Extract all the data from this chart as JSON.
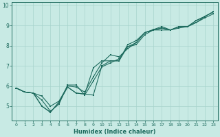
{
  "title": "",
  "xlabel": "Humidex (Indice chaleur)",
  "xlim": [
    -0.5,
    23.5
  ],
  "ylim": [
    4.3,
    10.15
  ],
  "yticks": [
    5,
    6,
    7,
    8,
    9,
    10
  ],
  "xticks": [
    0,
    1,
    2,
    3,
    4,
    5,
    6,
    7,
    8,
    9,
    10,
    11,
    12,
    13,
    14,
    15,
    16,
    17,
    18,
    19,
    20,
    21,
    22,
    23
  ],
  "bg_color": "#c8eae4",
  "grid_color": "#a8d4cc",
  "line_color": "#1e6b5e",
  "line1": [
    5.9,
    5.7,
    5.65,
    5.0,
    4.7,
    5.2,
    5.95,
    5.65,
    5.6,
    5.55,
    7.0,
    7.25,
    7.25,
    8.05,
    8.25,
    8.65,
    8.8,
    8.95,
    8.78,
    8.95,
    8.95,
    9.25,
    9.45,
    9.68
  ],
  "line2": [
    5.9,
    5.7,
    5.65,
    5.5,
    5.0,
    5.25,
    6.0,
    5.95,
    5.7,
    6.45,
    7.15,
    7.55,
    7.45,
    7.85,
    8.15,
    8.65,
    8.78,
    8.88,
    8.78,
    8.95,
    8.95,
    9.25,
    9.45,
    9.68
  ],
  "line3": [
    5.9,
    5.7,
    5.65,
    5.3,
    4.75,
    5.1,
    6.05,
    6.05,
    5.55,
    6.25,
    6.95,
    7.15,
    7.35,
    7.95,
    8.15,
    8.65,
    8.78,
    8.88,
    8.78,
    8.95,
    8.95,
    9.15,
    9.45,
    9.68
  ],
  "line4": [
    5.9,
    5.7,
    5.65,
    5.0,
    4.7,
    5.2,
    5.95,
    5.65,
    5.6,
    6.9,
    7.25,
    7.25,
    7.25,
    7.95,
    8.05,
    8.55,
    8.78,
    8.78,
    8.78,
    8.88,
    8.95,
    9.15,
    9.38,
    9.58
  ]
}
